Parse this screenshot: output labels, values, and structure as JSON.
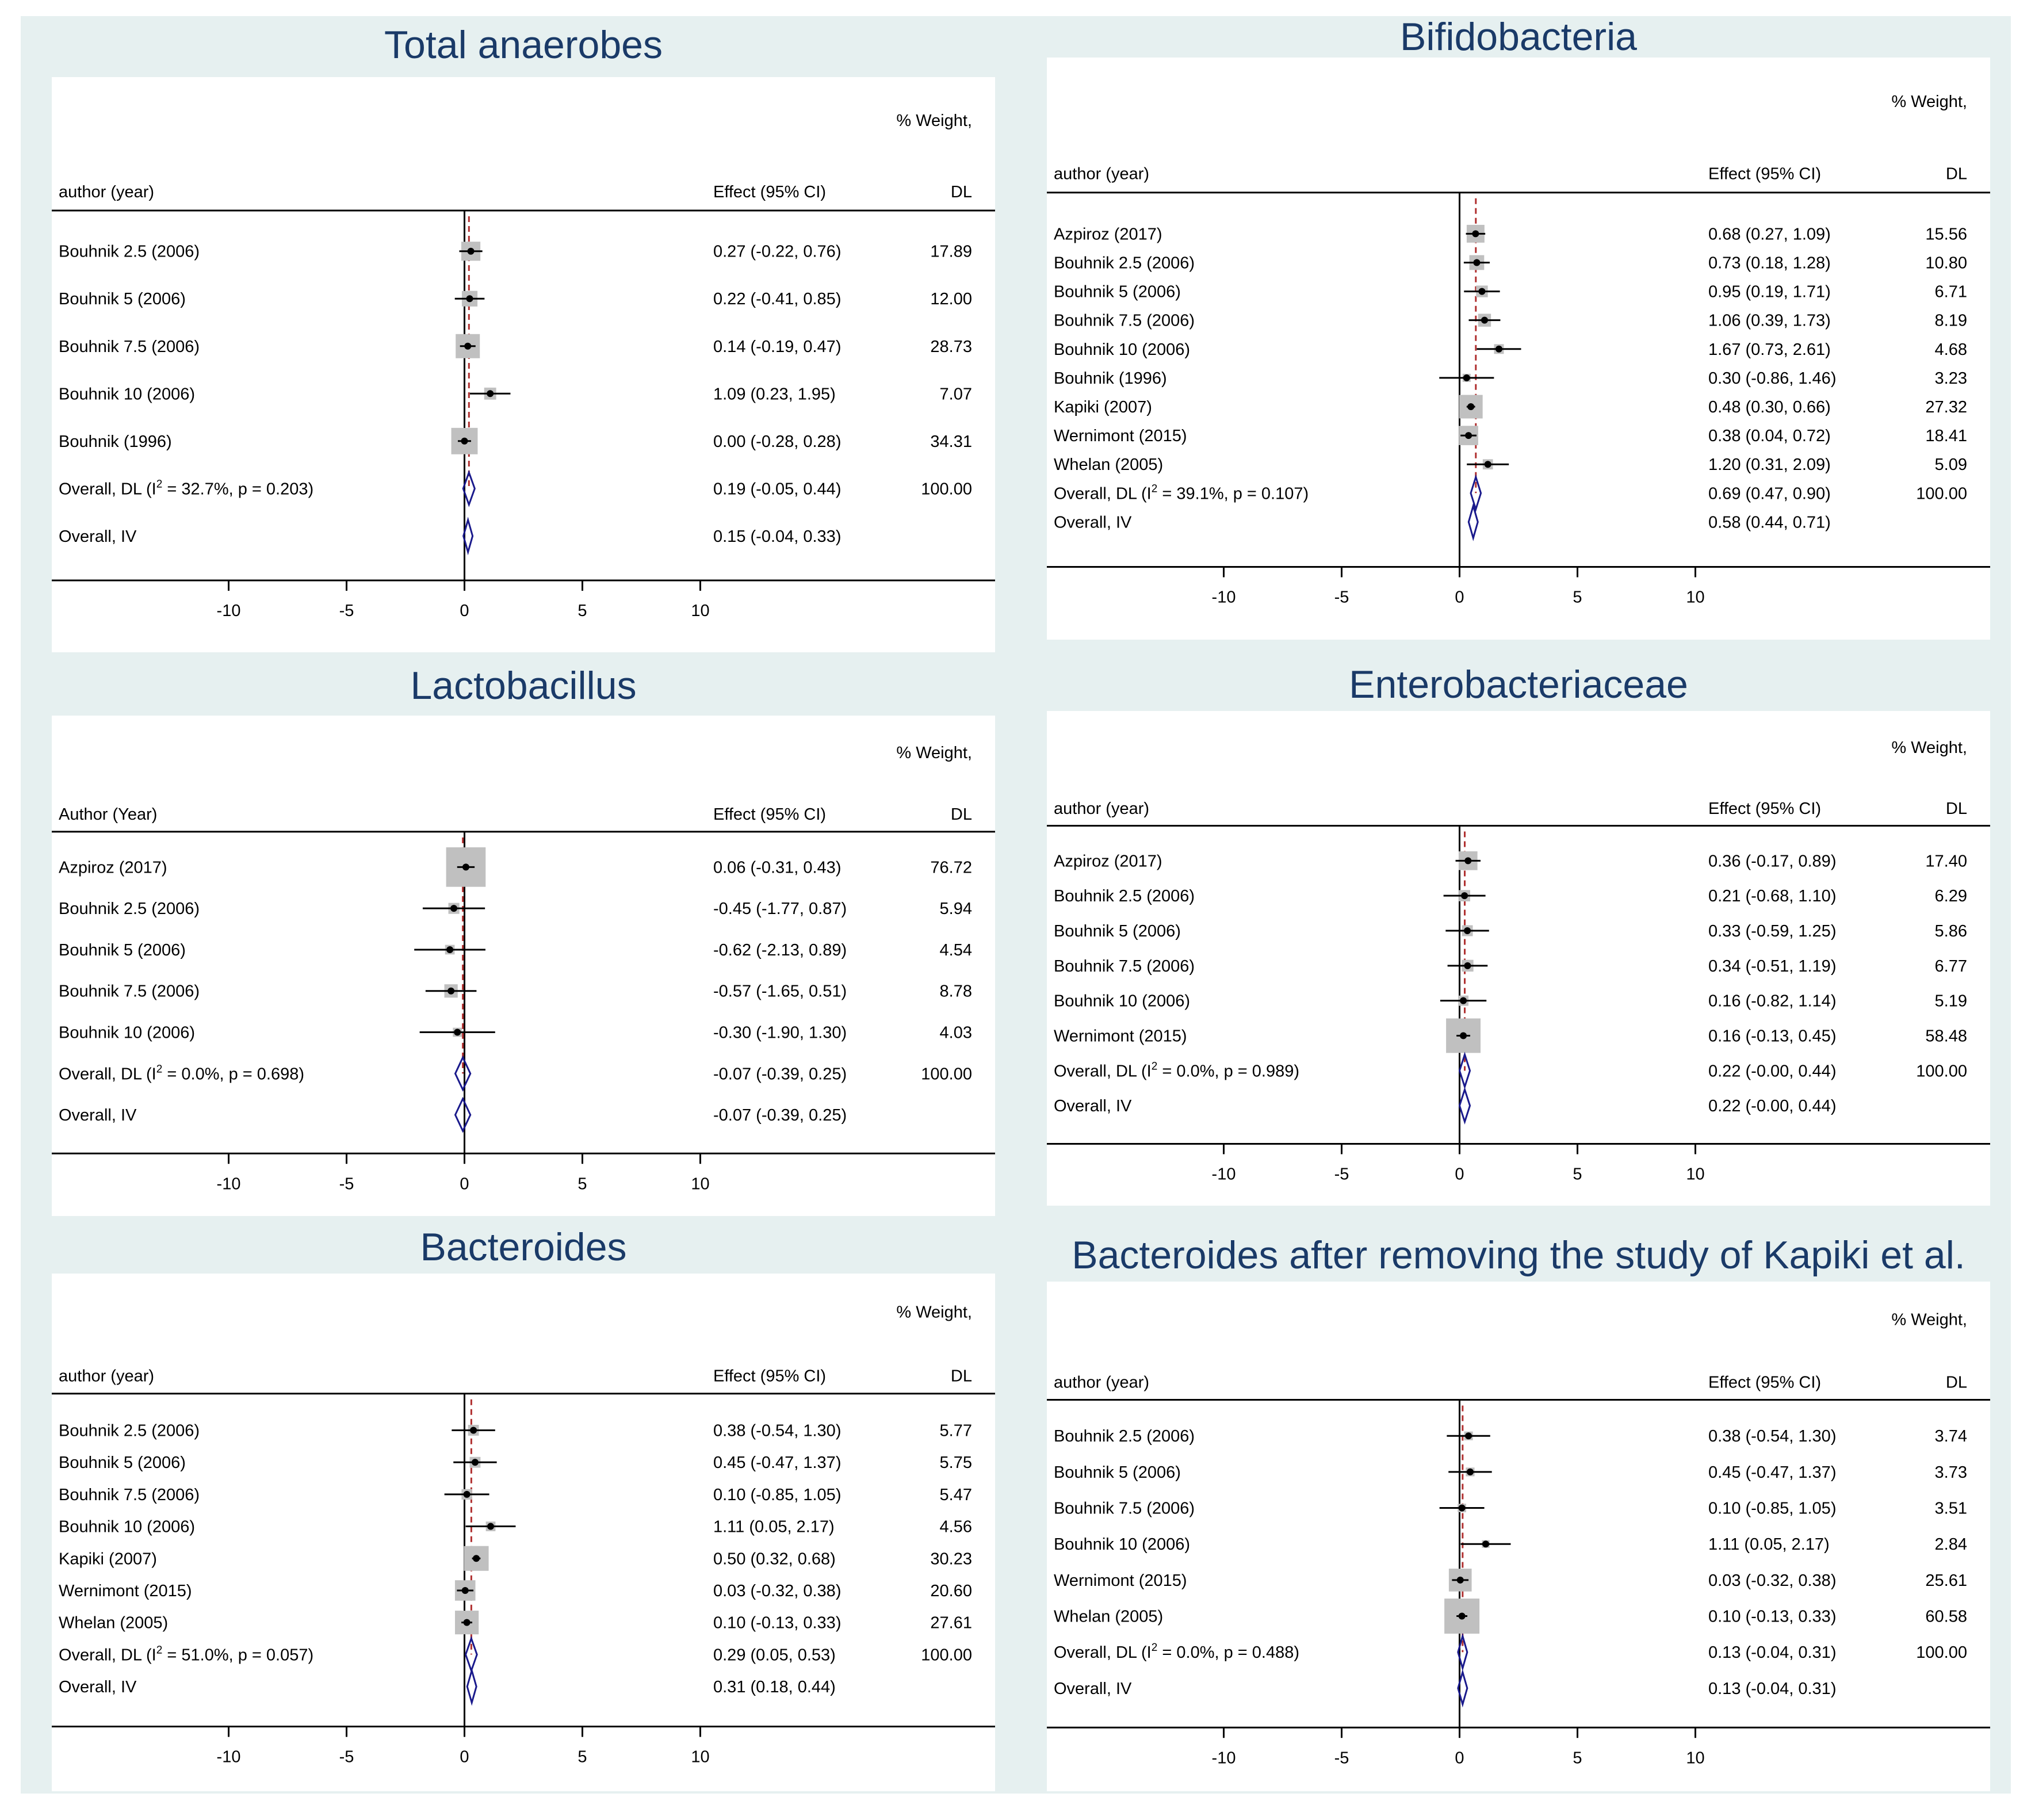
{
  "colors": {
    "background": "#e6f0f0",
    "plot_background": "#ffffff",
    "title": "#1a3a68",
    "axis": "#000000",
    "weight_box": "#c0c0c0",
    "overall_line": "#b03030",
    "diamond": "#1a1a8c"
  },
  "chart_data": [
    {
      "type": "forest",
      "title": "Total anaerobes",
      "study_header": "author (year)",
      "effect_header": "Effect (95% CI)",
      "weight_header_1": "% Weight,",
      "weight_header_2": "DL",
      "xticks": [
        -10,
        -5,
        0,
        5,
        10
      ],
      "xlim": [
        -17.5,
        22.5
      ],
      "studies": [
        {
          "label": "Bouhnik 2.5 (2006)",
          "effect": 0.27,
          "lo": -0.22,
          "hi": 0.76,
          "text": "0.27 (-0.22, 0.76)",
          "weight": 17.89,
          "weight_text": "17.89"
        },
        {
          "label": "Bouhnik 5 (2006)",
          "effect": 0.22,
          "lo": -0.41,
          "hi": 0.85,
          "text": "0.22 (-0.41, 0.85)",
          "weight": 12.0,
          "weight_text": "12.00"
        },
        {
          "label": "Bouhnik 7.5 (2006)",
          "effect": 0.14,
          "lo": -0.19,
          "hi": 0.47,
          "text": "0.14 (-0.19, 0.47)",
          "weight": 28.73,
          "weight_text": "28.73"
        },
        {
          "label": "Bouhnik 10 (2006)",
          "effect": 1.09,
          "lo": 0.23,
          "hi": 1.95,
          "text": "1.09 (0.23, 1.95)",
          "weight": 7.07,
          "weight_text": "7.07"
        },
        {
          "label": "Bouhnik (1996)",
          "effect": 0.0,
          "lo": -0.28,
          "hi": 0.28,
          "text": "0.00 (-0.28, 0.28)",
          "weight": 34.31,
          "weight_text": "34.31"
        }
      ],
      "overall_dl": {
        "label": "Overall, DL (I² = 32.7%, p = 0.203)",
        "effect": 0.19,
        "lo": -0.05,
        "hi": 0.44,
        "text": "0.19 (-0.05, 0.44)",
        "weight_text": "100.00"
      },
      "overall_iv": {
        "label": "Overall, IV",
        "effect": 0.15,
        "lo": -0.04,
        "hi": 0.33,
        "text": "0.15 (-0.04, 0.33)"
      }
    },
    {
      "type": "forest",
      "title": "Bifidobacteria",
      "study_header": "author (year)",
      "effect_header": "Effect (95% CI)",
      "weight_header_1": "% Weight,",
      "weight_header_2": "DL",
      "xticks": [
        -10,
        -5,
        0,
        5,
        10
      ],
      "xlim": [
        -17.5,
        22.5
      ],
      "studies": [
        {
          "label": "Azpiroz (2017)",
          "effect": 0.68,
          "lo": 0.27,
          "hi": 1.09,
          "text": "0.68 (0.27, 1.09)",
          "weight": 15.56,
          "weight_text": "15.56"
        },
        {
          "label": "Bouhnik 2.5 (2006)",
          "effect": 0.73,
          "lo": 0.18,
          "hi": 1.28,
          "text": "0.73 (0.18, 1.28)",
          "weight": 10.8,
          "weight_text": "10.80"
        },
        {
          "label": "Bouhnik 5 (2006)",
          "effect": 0.95,
          "lo": 0.19,
          "hi": 1.71,
          "text": "0.95 (0.19, 1.71)",
          "weight": 6.71,
          "weight_text": "6.71"
        },
        {
          "label": "Bouhnik 7.5 (2006)",
          "effect": 1.06,
          "lo": 0.39,
          "hi": 1.73,
          "text": "1.06 (0.39, 1.73)",
          "weight": 8.19,
          "weight_text": "8.19"
        },
        {
          "label": "Bouhnik 10 (2006)",
          "effect": 1.67,
          "lo": 0.73,
          "hi": 2.61,
          "text": "1.67 (0.73, 2.61)",
          "weight": 4.68,
          "weight_text": "4.68"
        },
        {
          "label": "Bouhnik (1996)",
          "effect": 0.3,
          "lo": -0.86,
          "hi": 1.46,
          "text": "0.30 (-0.86, 1.46)",
          "weight": 3.23,
          "weight_text": "3.23"
        },
        {
          "label": "Kapiki (2007)",
          "effect": 0.48,
          "lo": 0.3,
          "hi": 0.66,
          "text": "0.48 (0.30, 0.66)",
          "weight": 27.32,
          "weight_text": "27.32"
        },
        {
          "label": "Wernimont (2015)",
          "effect": 0.38,
          "lo": 0.04,
          "hi": 0.72,
          "text": "0.38 (0.04, 0.72)",
          "weight": 18.41,
          "weight_text": "18.41"
        },
        {
          "label": "Whelan (2005)",
          "effect": 1.2,
          "lo": 0.31,
          "hi": 2.09,
          "text": "1.20 (0.31, 2.09)",
          "weight": 5.09,
          "weight_text": "5.09"
        }
      ],
      "overall_dl": {
        "label": "Overall, DL (I² = 39.1%, p = 0.107)",
        "effect": 0.69,
        "lo": 0.47,
        "hi": 0.9,
        "text": "0.69 (0.47, 0.90)",
        "weight_text": "100.00"
      },
      "overall_iv": {
        "label": "Overall, IV",
        "effect": 0.58,
        "lo": 0.44,
        "hi": 0.71,
        "text": "0.58 (0.44, 0.71)"
      }
    },
    {
      "type": "forest",
      "title": "Lactobacillus",
      "study_header": "Author (Year)",
      "effect_header": "Effect (95% CI)",
      "weight_header_1": "% Weight,",
      "weight_header_2": "DL",
      "xticks": [
        -10,
        -5,
        0,
        5,
        10
      ],
      "xlim": [
        -17.5,
        22.5
      ],
      "studies": [
        {
          "label": "Azpiroz (2017)",
          "effect": 0.06,
          "lo": -0.31,
          "hi": 0.43,
          "text": "0.06 (-0.31, 0.43)",
          "weight": 76.72,
          "weight_text": "76.72"
        },
        {
          "label": "Bouhnik 2.5 (2006)",
          "effect": -0.45,
          "lo": -1.77,
          "hi": 0.87,
          "text": "-0.45 (-1.77, 0.87)",
          "weight": 5.94,
          "weight_text": "5.94"
        },
        {
          "label": "Bouhnik 5 (2006)",
          "effect": -0.62,
          "lo": -2.13,
          "hi": 0.89,
          "text": "-0.62 (-2.13, 0.89)",
          "weight": 4.54,
          "weight_text": "4.54"
        },
        {
          "label": "Bouhnik 7.5 (2006)",
          "effect": -0.57,
          "lo": -1.65,
          "hi": 0.51,
          "text": "-0.57 (-1.65, 0.51)",
          "weight": 8.78,
          "weight_text": "8.78"
        },
        {
          "label": "Bouhnik 10 (2006)",
          "effect": -0.3,
          "lo": -1.9,
          "hi": 1.3,
          "text": "-0.30 (-1.90, 1.30)",
          "weight": 4.03,
          "weight_text": "4.03"
        }
      ],
      "overall_dl": {
        "label": "Overall, DL (I² = 0.0%, p = 0.698)",
        "effect": -0.07,
        "lo": -0.39,
        "hi": 0.25,
        "text": "-0.07 (-0.39, 0.25)",
        "weight_text": "100.00"
      },
      "overall_iv": {
        "label": "Overall, IV",
        "effect": -0.07,
        "lo": -0.39,
        "hi": 0.25,
        "text": "-0.07 (-0.39, 0.25)"
      }
    },
    {
      "type": "forest",
      "title": "Enterobacteriaceae",
      "study_header": "author (year)",
      "effect_header": "Effect (95% CI)",
      "weight_header_1": "% Weight,",
      "weight_header_2": "DL",
      "xticks": [
        -10,
        -5,
        0,
        5,
        10
      ],
      "xlim": [
        -17.5,
        22.5
      ],
      "studies": [
        {
          "label": "Azpiroz (2017)",
          "effect": 0.36,
          "lo": -0.17,
          "hi": 0.89,
          "text": "0.36 (-0.17, 0.89)",
          "weight": 17.4,
          "weight_text": "17.40"
        },
        {
          "label": "Bouhnik 2.5 (2006)",
          "effect": 0.21,
          "lo": -0.68,
          "hi": 1.1,
          "text": "0.21 (-0.68, 1.10)",
          "weight": 6.29,
          "weight_text": "6.29"
        },
        {
          "label": "Bouhnik 5 (2006)",
          "effect": 0.33,
          "lo": -0.59,
          "hi": 1.25,
          "text": "0.33 (-0.59, 1.25)",
          "weight": 5.86,
          "weight_text": "5.86"
        },
        {
          "label": "Bouhnik 7.5 (2006)",
          "effect": 0.34,
          "lo": -0.51,
          "hi": 1.19,
          "text": "0.34 (-0.51, 1.19)",
          "weight": 6.77,
          "weight_text": "6.77"
        },
        {
          "label": "Bouhnik 10 (2006)",
          "effect": 0.16,
          "lo": -0.82,
          "hi": 1.14,
          "text": "0.16 (-0.82, 1.14)",
          "weight": 5.19,
          "weight_text": "5.19"
        },
        {
          "label": "Wernimont (2015)",
          "effect": 0.16,
          "lo": -0.13,
          "hi": 0.45,
          "text": "0.16 (-0.13, 0.45)",
          "weight": 58.48,
          "weight_text": "58.48"
        }
      ],
      "overall_dl": {
        "label": "Overall, DL (I² = 0.0%, p = 0.989)",
        "effect": 0.22,
        "lo": -0.0,
        "hi": 0.44,
        "text": "0.22 (-0.00, 0.44)",
        "weight_text": "100.00"
      },
      "overall_iv": {
        "label": "Overall, IV",
        "effect": 0.22,
        "lo": -0.0,
        "hi": 0.44,
        "text": "0.22 (-0.00, 0.44)"
      }
    },
    {
      "type": "forest",
      "title": "Bacteroides",
      "study_header": "author (year)",
      "effect_header": "Effect (95% CI)",
      "weight_header_1": "% Weight,",
      "weight_header_2": "DL",
      "xticks": [
        -10,
        -5,
        0,
        5,
        10
      ],
      "xlim": [
        -17.5,
        22.5
      ],
      "studies": [
        {
          "label": "Bouhnik 2.5 (2006)",
          "effect": 0.38,
          "lo": -0.54,
          "hi": 1.3,
          "text": "0.38 (-0.54, 1.30)",
          "weight": 5.77,
          "weight_text": "5.77"
        },
        {
          "label": "Bouhnik 5 (2006)",
          "effect": 0.45,
          "lo": -0.47,
          "hi": 1.37,
          "text": "0.45 (-0.47, 1.37)",
          "weight": 5.75,
          "weight_text": "5.75"
        },
        {
          "label": "Bouhnik 7.5 (2006)",
          "effect": 0.1,
          "lo": -0.85,
          "hi": 1.05,
          "text": "0.10 (-0.85, 1.05)",
          "weight": 5.47,
          "weight_text": "5.47"
        },
        {
          "label": "Bouhnik 10 (2006)",
          "effect": 1.11,
          "lo": 0.05,
          "hi": 2.17,
          "text": "1.11 (0.05, 2.17)",
          "weight": 4.56,
          "weight_text": "4.56"
        },
        {
          "label": "Kapiki (2007)",
          "effect": 0.5,
          "lo": 0.32,
          "hi": 0.68,
          "text": "0.50 (0.32, 0.68)",
          "weight": 30.23,
          "weight_text": "30.23"
        },
        {
          "label": "Wernimont (2015)",
          "effect": 0.03,
          "lo": -0.32,
          "hi": 0.38,
          "text": "0.03 (-0.32, 0.38)",
          "weight": 20.6,
          "weight_text": "20.60"
        },
        {
          "label": "Whelan (2005)",
          "effect": 0.1,
          "lo": -0.13,
          "hi": 0.33,
          "text": "0.10 (-0.13, 0.33)",
          "weight": 27.61,
          "weight_text": "27.61"
        }
      ],
      "overall_dl": {
        "label": "Overall, DL (I² = 51.0%, p = 0.057)",
        "effect": 0.29,
        "lo": 0.05,
        "hi": 0.53,
        "text": "0.29 (0.05, 0.53)",
        "weight_text": "100.00"
      },
      "overall_iv": {
        "label": "Overall, IV",
        "effect": 0.31,
        "lo": 0.18,
        "hi": 0.44,
        "text": "0.31 (0.18, 0.44)"
      }
    },
    {
      "type": "forest",
      "title": "Bacteroides after removing the study of Kapiki et al.",
      "study_header": "author (year)",
      "effect_header": "Effect (95% CI)",
      "weight_header_1": "% Weight,",
      "weight_header_2": "DL",
      "xticks": [
        -10,
        -5,
        0,
        5,
        10
      ],
      "xlim": [
        -17.5,
        22.5
      ],
      "studies": [
        {
          "label": "Bouhnik 2.5 (2006)",
          "effect": 0.38,
          "lo": -0.54,
          "hi": 1.3,
          "text": "0.38 (-0.54, 1.30)",
          "weight": 3.74,
          "weight_text": "3.74"
        },
        {
          "label": "Bouhnik 5 (2006)",
          "effect": 0.45,
          "lo": -0.47,
          "hi": 1.37,
          "text": "0.45 (-0.47, 1.37)",
          "weight": 3.73,
          "weight_text": "3.73"
        },
        {
          "label": "Bouhnik 7.5 (2006)",
          "effect": 0.1,
          "lo": -0.85,
          "hi": 1.05,
          "text": "0.10 (-0.85, 1.05)",
          "weight": 3.51,
          "weight_text": "3.51"
        },
        {
          "label": "Bouhnik 10 (2006)",
          "effect": 1.11,
          "lo": 0.05,
          "hi": 2.17,
          "text": "1.11 (0.05, 2.17)",
          "weight": 2.84,
          "weight_text": "2.84"
        },
        {
          "label": "Wernimont (2015)",
          "effect": 0.03,
          "lo": -0.32,
          "hi": 0.38,
          "text": "0.03 (-0.32, 0.38)",
          "weight": 25.61,
          "weight_text": "25.61"
        },
        {
          "label": "Whelan (2005)",
          "effect": 0.1,
          "lo": -0.13,
          "hi": 0.33,
          "text": "0.10 (-0.13, 0.33)",
          "weight": 60.58,
          "weight_text": "60.58"
        }
      ],
      "overall_dl": {
        "label": "Overall, DL (I² = 0.0%, p = 0.488)",
        "effect": 0.13,
        "lo": -0.04,
        "hi": 0.31,
        "text": "0.13 (-0.04, 0.31)",
        "weight_text": "100.00"
      },
      "overall_iv": {
        "label": "Overall, IV",
        "effect": 0.13,
        "lo": -0.04,
        "hi": 0.31,
        "text": "0.13 (-0.04, 0.31)"
      }
    }
  ]
}
